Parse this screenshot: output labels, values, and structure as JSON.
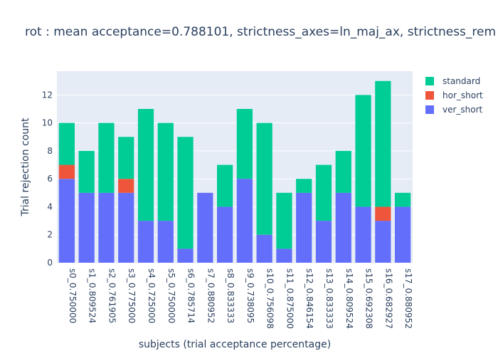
{
  "chart_data": {
    "type": "bar",
    "stacked": true,
    "title": "rot : mean acceptance=0.788101, strictness_axes=ln_maj_ax, strictness_rem",
    "xlabel": "subjects (trial acceptance percentage)",
    "ylabel": "Trial rejection count",
    "ylim": [
      0,
      13.7
    ],
    "yticks": [
      0,
      2,
      4,
      6,
      8,
      10,
      12
    ],
    "grid": true,
    "legend_position": "top-right",
    "categories": [
      "s0_0.750000",
      "s1_0.809524",
      "s2_0.761905",
      "s3_0.775000",
      "s4_0.725000",
      "s5_0.750000",
      "s6_0.785714",
      "s7_0.880952",
      "s8_0.833333",
      "s9_0.738095",
      "s10_0.756098",
      "s11_0.875000",
      "s12_0.846154",
      "s13_0.833333",
      "s14_0.809524",
      "s15_0.692308",
      "s16_0.682927",
      "s17_0.880952"
    ],
    "series": [
      {
        "name": "ver_short",
        "color": "#636efa",
        "values": [
          6,
          5,
          5,
          5,
          3,
          3,
          1,
          5,
          4,
          6,
          2,
          1,
          5,
          3,
          5,
          4,
          3,
          4
        ]
      },
      {
        "name": "hor_short",
        "color": "#ef553b",
        "values": [
          1,
          0,
          0,
          1,
          0,
          0,
          0,
          0,
          0,
          0,
          0,
          0,
          0,
          0,
          0,
          0,
          1,
          0
        ]
      },
      {
        "name": "standard",
        "color": "#00cc96",
        "values": [
          3,
          3,
          5,
          3,
          8,
          7,
          8,
          0,
          3,
          5,
          8,
          4,
          1,
          4,
          3,
          8,
          9,
          1
        ]
      }
    ],
    "legend_order": [
      "standard",
      "hor_short",
      "ver_short"
    ],
    "plot_bg": "#e5ecf6"
  }
}
